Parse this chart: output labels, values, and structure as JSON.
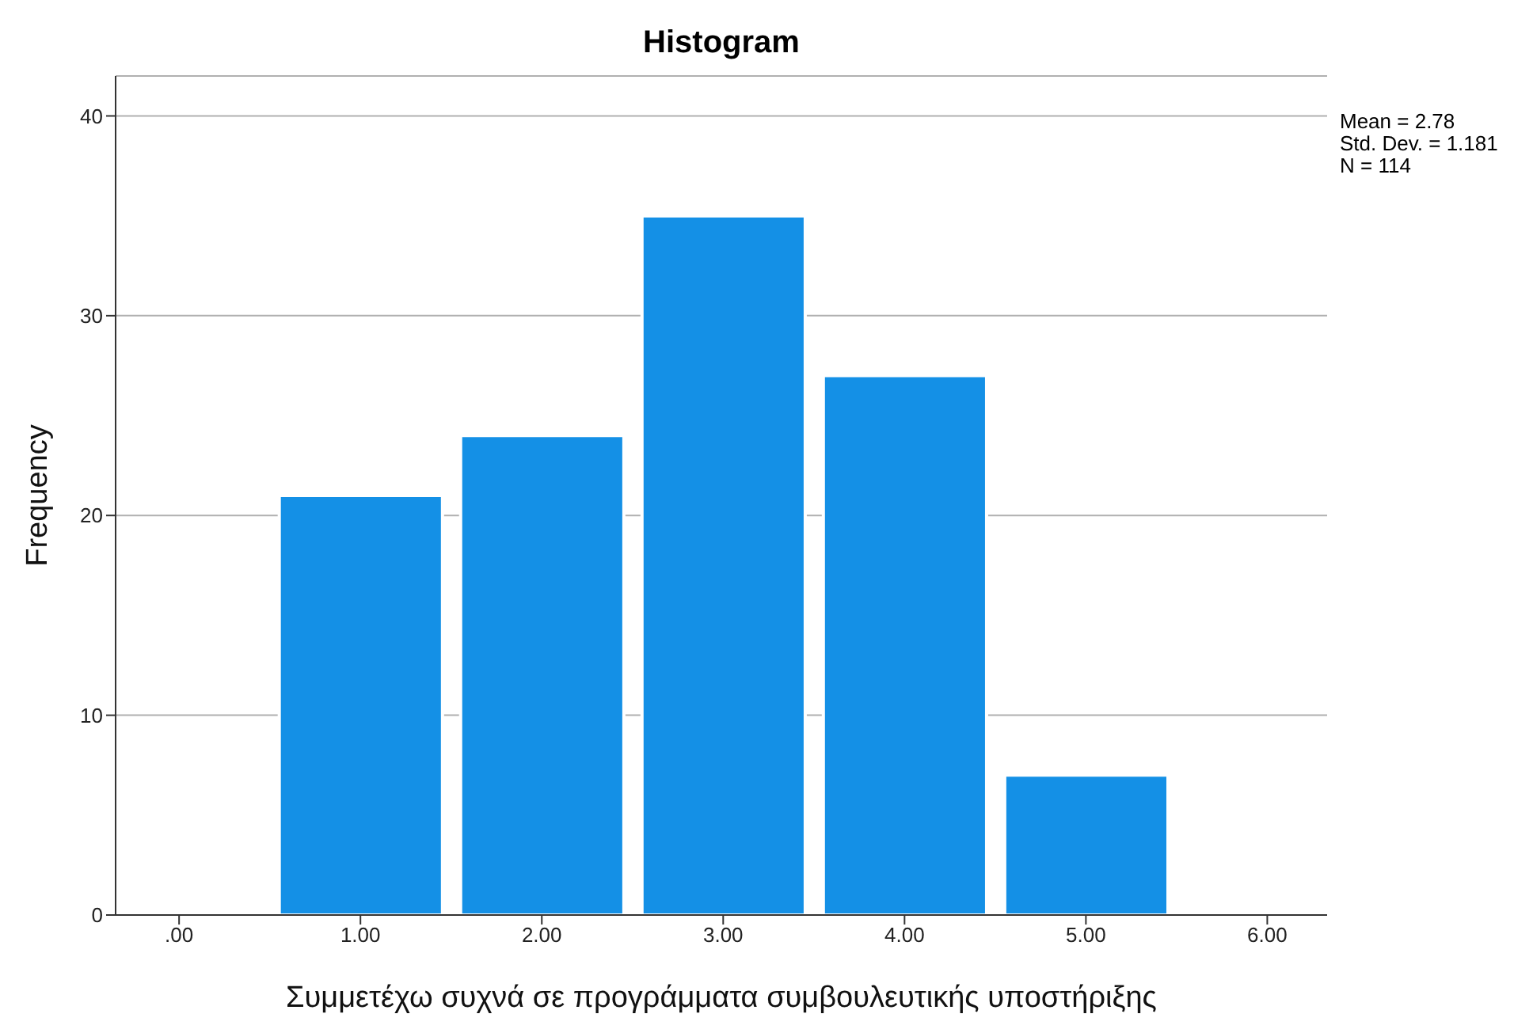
{
  "chart_data": {
    "type": "histogram",
    "title": "Histogram",
    "xlabel": "Συμμετέχω συχνά σε προγράμματα συμβουλευτικής υποστήριξης",
    "ylabel": "Frequency",
    "bins": [
      0.5,
      1.5,
      2.5,
      3.5,
      4.5,
      5.5
    ],
    "values": [
      21,
      24,
      35,
      27,
      7
    ],
    "color": "#1490e6",
    "xlim": [
      -0.35,
      6.33
    ],
    "xticks": [
      {
        "value": 0,
        "label": ".00"
      },
      {
        "value": 1,
        "label": "1.00"
      },
      {
        "value": 2,
        "label": "2.00"
      },
      {
        "value": 3,
        "label": "3.00"
      },
      {
        "value": 4,
        "label": "4.00"
      },
      {
        "value": 5,
        "label": "5.00"
      },
      {
        "value": 6,
        "label": "6.00"
      }
    ],
    "ylim": [
      0,
      42
    ],
    "yticks": [
      0,
      10,
      20,
      30,
      40
    ],
    "grid": "y",
    "annotations": [
      "Mean = 2.78",
      "Std. Dev. = 1.181",
      "N = 114"
    ]
  }
}
